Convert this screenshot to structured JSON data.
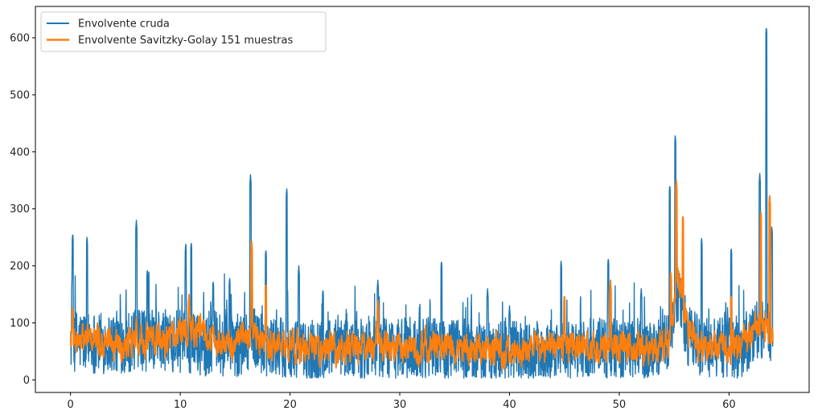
{
  "chart_data": {
    "type": "line",
    "title": "",
    "xlabel": "",
    "ylabel": "",
    "xlim": [
      -3.2,
      67.3
    ],
    "ylim": [
      -22,
      655
    ],
    "x_ticks": [
      0,
      10,
      20,
      30,
      40,
      50,
      60
    ],
    "x_tick_labels": [
      "0",
      "10",
      "20",
      "30",
      "40",
      "50",
      "60"
    ],
    "y_ticks": [
      0,
      100,
      200,
      300,
      400,
      500,
      600
    ],
    "y_tick_labels": [
      "0",
      "100",
      "200",
      "300",
      "400",
      "500",
      "600"
    ],
    "grid": false,
    "legend_position": "upper-left",
    "series": [
      {
        "name": "Envolvente cruda",
        "color": "#1f77b4",
        "base": [
          [
            0,
            70
          ],
          [
            3,
            65
          ],
          [
            6,
            68
          ],
          [
            9,
            70
          ],
          [
            12,
            62
          ],
          [
            15,
            58
          ],
          [
            16.5,
            75
          ],
          [
            18,
            60
          ],
          [
            20,
            50
          ],
          [
            24,
            52
          ],
          [
            28,
            55
          ],
          [
            32,
            55
          ],
          [
            36,
            50
          ],
          [
            40,
            48
          ],
          [
            44,
            50
          ],
          [
            48,
            55
          ],
          [
            52,
            50
          ],
          [
            54.5,
            60
          ],
          [
            55.3,
            150
          ],
          [
            56.3,
            70
          ],
          [
            58,
            55
          ],
          [
            61,
            55
          ],
          [
            63,
            90
          ],
          [
            64,
            60
          ]
        ],
        "noise": 55,
        "peaks": [
          [
            0.2,
            258
          ],
          [
            1.5,
            252
          ],
          [
            6,
            280
          ],
          [
            7,
            195
          ],
          [
            10.5,
            240
          ],
          [
            11,
            243
          ],
          [
            13,
            175
          ],
          [
            14.5,
            180
          ],
          [
            16.4,
            360
          ],
          [
            17.8,
            230
          ],
          [
            19.7,
            337
          ],
          [
            20.8,
            200
          ],
          [
            23,
            160
          ],
          [
            28,
            175
          ],
          [
            33.8,
            210
          ],
          [
            38,
            160
          ],
          [
            40,
            130
          ],
          [
            44.7,
            210
          ],
          [
            49,
            215
          ],
          [
            52,
            160
          ],
          [
            54.6,
            343
          ],
          [
            55.1,
            430
          ],
          [
            57.5,
            250
          ],
          [
            60.2,
            233
          ],
          [
            62.8,
            362
          ],
          [
            63.4,
            620
          ],
          [
            63.9,
            270
          ]
        ]
      },
      {
        "name": "Envolvente Savitzky-Golay 151 muestras",
        "color": "#ff7f0e",
        "base": [
          [
            0,
            72
          ],
          [
            3,
            68
          ],
          [
            6,
            70
          ],
          [
            9,
            72
          ],
          [
            11,
            90
          ],
          [
            13,
            70
          ],
          [
            15,
            60
          ],
          [
            16.5,
            80
          ],
          [
            18,
            65
          ],
          [
            20,
            55
          ],
          [
            24,
            55
          ],
          [
            28,
            60
          ],
          [
            32,
            58
          ],
          [
            36,
            55
          ],
          [
            40,
            50
          ],
          [
            44,
            55
          ],
          [
            48,
            60
          ],
          [
            52,
            55
          ],
          [
            54.5,
            65
          ],
          [
            55.3,
            180
          ],
          [
            56.3,
            80
          ],
          [
            58,
            55
          ],
          [
            61,
            60
          ],
          [
            63,
            100
          ],
          [
            64,
            70
          ]
        ],
        "noise": 24,
        "peaks": [
          [
            0.2,
            130
          ],
          [
            6,
            110
          ],
          [
            10.8,
            150
          ],
          [
            16.5,
            245
          ],
          [
            17.8,
            170
          ],
          [
            28,
            140
          ],
          [
            45,
            150
          ],
          [
            49.2,
            175
          ],
          [
            54.7,
            190
          ],
          [
            55.2,
            350
          ],
          [
            55.8,
            290
          ],
          [
            60.2,
            150
          ],
          [
            62.9,
            295
          ],
          [
            63.7,
            325
          ]
        ]
      }
    ]
  }
}
